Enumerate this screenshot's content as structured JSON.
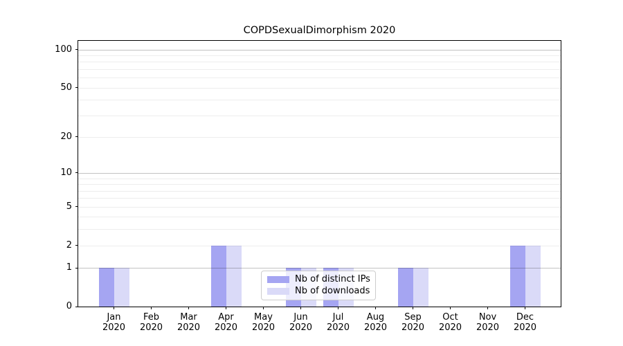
{
  "title": "COPDSexualDimorphism 2020",
  "chart_data": {
    "type": "bar",
    "title": "COPDSexualDimorphism 2020",
    "categories": [
      "Jan 2020",
      "Feb 2020",
      "Mar 2020",
      "Apr 2020",
      "May 2020",
      "Jun 2020",
      "Jul 2020",
      "Aug 2020",
      "Sep 2020",
      "Oct 2020",
      "Nov 2020",
      "Dec 2020"
    ],
    "x": {
      "months": [
        "Jan",
        "Feb",
        "Mar",
        "Apr",
        "May",
        "Jun",
        "Jul",
        "Aug",
        "Sep",
        "Oct",
        "Nov",
        "Dec"
      ],
      "year": "2020"
    },
    "series": [
      {
        "name": "Nb of distinct IPs",
        "color": "#a5a5f2",
        "values": [
          1,
          0,
          0,
          2,
          0,
          1,
          1,
          0,
          1,
          0,
          0,
          2
        ]
      },
      {
        "name": "Nb of downloads",
        "color": "#dadaf8",
        "values": [
          1,
          0,
          0,
          2,
          0,
          1,
          1,
          0,
          1,
          0,
          0,
          2
        ]
      }
    ],
    "xlabel": "",
    "ylabel": "",
    "y_scale": "log1p",
    "ylim": [
      0,
      117
    ],
    "y_ticks": [
      0,
      1,
      2,
      5,
      10,
      20,
      50,
      100
    ],
    "gridlines": {
      "major": [
        1,
        10,
        100
      ],
      "minor": [
        2,
        3,
        4,
        5,
        6,
        7,
        8,
        9,
        20,
        30,
        40,
        50,
        60,
        70,
        80,
        90
      ]
    },
    "grid": true,
    "legend_position": "lower center"
  }
}
